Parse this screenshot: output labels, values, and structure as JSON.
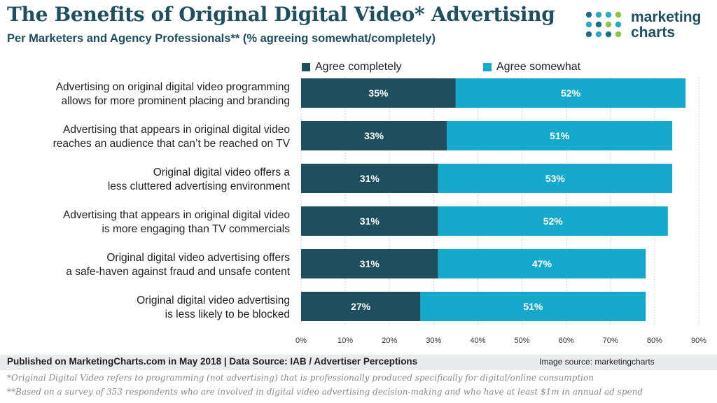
{
  "header": {
    "title": "The Benefits of Original Digital Video* Advertising",
    "subtitle": "Per Marketers and Agency Professionals** (% agreeing somewhat/completely)"
  },
  "logo": {
    "line1": "marketing",
    "line2": "charts",
    "dot_colors": [
      "#1f6e87",
      "#2aa8c9",
      "#8cc63f"
    ]
  },
  "colors": {
    "completely": "#1f4e5f",
    "somewhat": "#17a9cc"
  },
  "chart_data": {
    "type": "bar",
    "orientation": "horizontal",
    "stacked": true,
    "categories": [
      [
        "Advertising on original digital video programming",
        "allows for more prominent placing and branding"
      ],
      [
        "Advertising that appears in original digital video",
        "reaches an audience that can’t be reached on TV"
      ],
      [
        "Original digital video offers a",
        "less cluttered advertising environment"
      ],
      [
        "Advertising that appears in original digital video",
        "is more engaging than TV commercials"
      ],
      [
        "Original digital video advertising offers",
        "a safe-haven against fraud and unsafe content"
      ],
      [
        "Original digital video advertising",
        "is less likely to be blocked"
      ]
    ],
    "series": [
      {
        "name": "Agree completely",
        "values": [
          35,
          33,
          31,
          31,
          31,
          27
        ]
      },
      {
        "name": "Agree somewhat",
        "values": [
          52,
          51,
          53,
          52,
          47,
          51
        ]
      }
    ],
    "xlim": [
      0,
      90
    ],
    "xticks": [
      "0%",
      "10%",
      "20%",
      "30%",
      "40%",
      "50%",
      "60%",
      "70%",
      "80%",
      "90%"
    ],
    "grid": true,
    "legend_position": "top"
  },
  "footer": {
    "published": "Published on MarketingCharts.com in May 2018 | Data Source: IAB / Advertiser Perceptions",
    "image_source": "Image source: marketingcharts",
    "note1": "*Original Digital Video refers to programming (not advertising) that is professionally produced specifically for digital/online consumption",
    "note2": "**Based on a survey of 353 respondents who are involved in digital video advertising decision-making and who have at least $1m in annual ad spend"
  }
}
